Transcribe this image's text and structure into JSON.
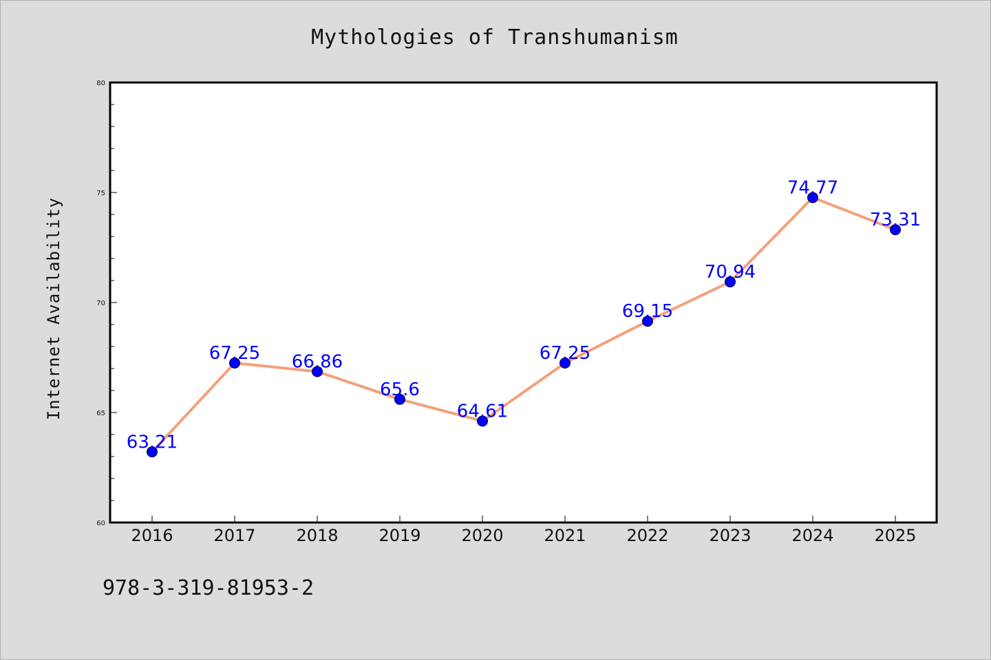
{
  "chart_data": {
    "type": "line",
    "title": "Mythologies of Transhumanism",
    "xlabel": "",
    "ylabel": "Internet Availability",
    "categories": [
      "2016",
      "2017",
      "2018",
      "2019",
      "2020",
      "2021",
      "2022",
      "2023",
      "2024",
      "2025"
    ],
    "values": [
      63.21,
      67.25,
      66.86,
      65.6,
      64.61,
      67.25,
      69.15,
      70.94,
      74.77,
      73.31
    ],
    "data_labels": [
      "63.21",
      "67.25",
      "66.86",
      "65.6",
      "64.61",
      "67.25",
      "69.15",
      "70.94",
      "74.77",
      "73.31"
    ],
    "ylim": [
      60,
      80
    ],
    "yticks": [
      "60",
      "65",
      "70",
      "75",
      "80"
    ],
    "grid": false,
    "legend": "none"
  },
  "footer_text": "978-3-319-81953-2",
  "colors": {
    "background": "#dcdcdc",
    "plot_background": "#ffffff",
    "line": "#f4a07a",
    "marker": "#0000ff",
    "data_label": "#0000ff",
    "axis": "#000000"
  }
}
